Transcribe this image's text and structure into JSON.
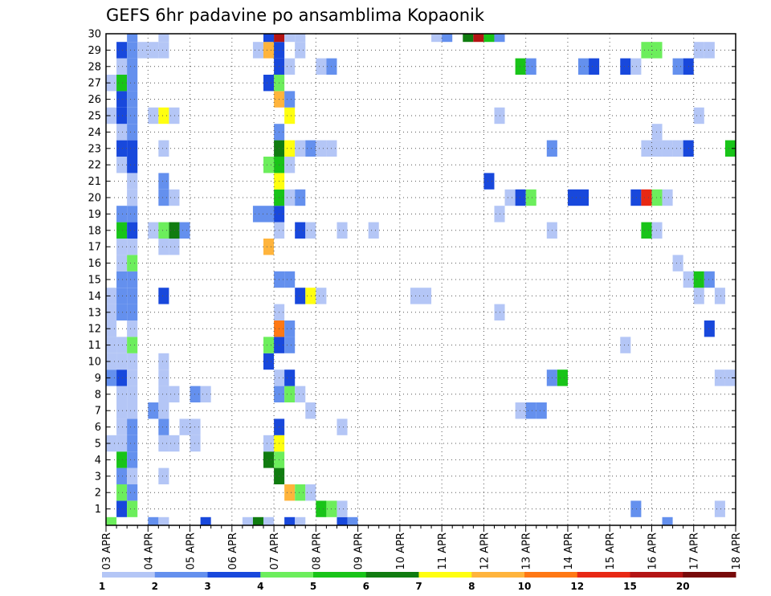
{
  "chart_data": {
    "type": "heatmap",
    "title": "GEFS 6hr padavine po ansamblima Kopaonik",
    "xlabel": "",
    "ylabel": "",
    "x_tick_labels": [
      "03 APR",
      "04 APR",
      "05 APR",
      "06 APR",
      "07 APR",
      "08 APR",
      "09 APR",
      "10 APR",
      "11 APR",
      "12 APR",
      "13 APR",
      "14 APR",
      "15 APR",
      "16 APR",
      "17 APR",
      "18 APR"
    ],
    "y_tick_labels": [
      "1",
      "2",
      "3",
      "4",
      "5",
      "6",
      "7",
      "8",
      "9",
      "10",
      "11",
      "12",
      "13",
      "14",
      "15",
      "16",
      "17",
      "18",
      "19",
      "20",
      "21",
      "22",
      "23",
      "24",
      "25",
      "26",
      "27",
      "28",
      "29",
      "30"
    ],
    "xlim": [
      0,
      60
    ],
    "ylim": [
      0,
      30
    ],
    "grid": true,
    "legend_position": "bottom",
    "legend_labels": [
      "1",
      "2",
      "3",
      "4",
      "5",
      "6",
      "7",
      "8",
      "10",
      "12",
      "15",
      "20"
    ],
    "legend_colors": [
      "#b4c6f6",
      "#6490ee",
      "#1848dc",
      "#6cee5c",
      "#18c418",
      "#107c10",
      "#ffff10",
      "#ffb43c",
      "#ff7814",
      "#e82814",
      "#b41414",
      "#780a0a"
    ],
    "cell_units": "x = 6-hour step from 03 APR 00Z, y = ensemble member, v = colour class 1-12",
    "cells": [
      {
        "x": 0,
        "y": 0,
        "v": 4
      },
      {
        "x": 4,
        "y": 0,
        "v": 2
      },
      {
        "x": 5,
        "y": 0,
        "v": 1
      },
      {
        "x": 9,
        "y": 0,
        "v": 3
      },
      {
        "x": 13,
        "y": 0,
        "v": 1
      },
      {
        "x": 14,
        "y": 0,
        "v": 6
      },
      {
        "x": 15,
        "y": 0,
        "v": 1
      },
      {
        "x": 17,
        "y": 0,
        "v": 3
      },
      {
        "x": 18,
        "y": 0,
        "v": 1
      },
      {
        "x": 22,
        "y": 0,
        "v": 3
      },
      {
        "x": 23,
        "y": 0,
        "v": 2
      },
      {
        "x": 53,
        "y": 0,
        "v": 2
      },
      {
        "x": 1,
        "y": 1,
        "v": 3
      },
      {
        "x": 2,
        "y": 1,
        "v": 4
      },
      {
        "x": 20,
        "y": 1,
        "v": 5
      },
      {
        "x": 21,
        "y": 1,
        "v": 4
      },
      {
        "x": 22,
        "y": 1,
        "v": 1
      },
      {
        "x": 50,
        "y": 1,
        "v": 2
      },
      {
        "x": 58,
        "y": 1,
        "v": 1
      },
      {
        "x": 1,
        "y": 2,
        "v": 4
      },
      {
        "x": 2,
        "y": 2,
        "v": 2
      },
      {
        "x": 17,
        "y": 2,
        "v": 8
      },
      {
        "x": 18,
        "y": 2,
        "v": 4
      },
      {
        "x": 19,
        "y": 2,
        "v": 1
      },
      {
        "x": 1,
        "y": 3,
        "v": 2
      },
      {
        "x": 2,
        "y": 3,
        "v": 1
      },
      {
        "x": 5,
        "y": 3,
        "v": 1
      },
      {
        "x": 16,
        "y": 3,
        "v": 6
      },
      {
        "x": 1,
        "y": 4,
        "v": 5
      },
      {
        "x": 2,
        "y": 4,
        "v": 2
      },
      {
        "x": 15,
        "y": 4,
        "v": 6
      },
      {
        "x": 16,
        "y": 4,
        "v": 4
      },
      {
        "x": 0,
        "y": 5,
        "v": 1
      },
      {
        "x": 1,
        "y": 5,
        "v": 1
      },
      {
        "x": 2,
        "y": 5,
        "v": 2
      },
      {
        "x": 5,
        "y": 5,
        "v": 1
      },
      {
        "x": 6,
        "y": 5,
        "v": 1
      },
      {
        "x": 8,
        "y": 5,
        "v": 1
      },
      {
        "x": 15,
        "y": 5,
        "v": 1
      },
      {
        "x": 16,
        "y": 5,
        "v": 7
      },
      {
        "x": 1,
        "y": 6,
        "v": 1
      },
      {
        "x": 2,
        "y": 6,
        "v": 2
      },
      {
        "x": 5,
        "y": 6,
        "v": 2
      },
      {
        "x": 7,
        "y": 6,
        "v": 1
      },
      {
        "x": 8,
        "y": 6,
        "v": 1
      },
      {
        "x": 16,
        "y": 6,
        "v": 3
      },
      {
        "x": 22,
        "y": 6,
        "v": 1
      },
      {
        "x": 1,
        "y": 7,
        "v": 1
      },
      {
        "x": 2,
        "y": 7,
        "v": 1
      },
      {
        "x": 4,
        "y": 7,
        "v": 2
      },
      {
        "x": 5,
        "y": 7,
        "v": 1
      },
      {
        "x": 19,
        "y": 7,
        "v": 1
      },
      {
        "x": 39,
        "y": 7,
        "v": 1
      },
      {
        "x": 40,
        "y": 7,
        "v": 2
      },
      {
        "x": 41,
        "y": 7,
        "v": 2
      },
      {
        "x": 1,
        "y": 8,
        "v": 1
      },
      {
        "x": 2,
        "y": 8,
        "v": 1
      },
      {
        "x": 5,
        "y": 8,
        "v": 1
      },
      {
        "x": 6,
        "y": 8,
        "v": 1
      },
      {
        "x": 8,
        "y": 8,
        "v": 2
      },
      {
        "x": 9,
        "y": 8,
        "v": 1
      },
      {
        "x": 16,
        "y": 8,
        "v": 2
      },
      {
        "x": 17,
        "y": 8,
        "v": 4
      },
      {
        "x": 18,
        "y": 8,
        "v": 1
      },
      {
        "x": 0,
        "y": 9,
        "v": 2
      },
      {
        "x": 1,
        "y": 9,
        "v": 3
      },
      {
        "x": 2,
        "y": 9,
        "v": 1
      },
      {
        "x": 5,
        "y": 9,
        "v": 1
      },
      {
        "x": 16,
        "y": 9,
        "v": 1
      },
      {
        "x": 17,
        "y": 9,
        "v": 3
      },
      {
        "x": 42,
        "y": 9,
        "v": 2
      },
      {
        "x": 43,
        "y": 9,
        "v": 5
      },
      {
        "x": 58,
        "y": 9,
        "v": 1
      },
      {
        "x": 59,
        "y": 9,
        "v": 1
      },
      {
        "x": 0,
        "y": 10,
        "v": 1
      },
      {
        "x": 1,
        "y": 10,
        "v": 1
      },
      {
        "x": 2,
        "y": 10,
        "v": 1
      },
      {
        "x": 5,
        "y": 10,
        "v": 1
      },
      {
        "x": 15,
        "y": 10,
        "v": 3
      },
      {
        "x": 0,
        "y": 11,
        "v": 1
      },
      {
        "x": 1,
        "y": 11,
        "v": 1
      },
      {
        "x": 2,
        "y": 11,
        "v": 4
      },
      {
        "x": 15,
        "y": 11,
        "v": 4
      },
      {
        "x": 16,
        "y": 11,
        "v": 3
      },
      {
        "x": 17,
        "y": 11,
        "v": 2
      },
      {
        "x": 49,
        "y": 11,
        "v": 1
      },
      {
        "x": 0,
        "y": 12,
        "v": 1
      },
      {
        "x": 2,
        "y": 12,
        "v": 1
      },
      {
        "x": 16,
        "y": 12,
        "v": 9
      },
      {
        "x": 17,
        "y": 12,
        "v": 2
      },
      {
        "x": 57,
        "y": 12,
        "v": 3
      },
      {
        "x": 0,
        "y": 13,
        "v": 1
      },
      {
        "x": 1,
        "y": 13,
        "v": 2
      },
      {
        "x": 2,
        "y": 13,
        "v": 2
      },
      {
        "x": 16,
        "y": 13,
        "v": 1
      },
      {
        "x": 37,
        "y": 13,
        "v": 1
      },
      {
        "x": 0,
        "y": 14,
        "v": 1
      },
      {
        "x": 1,
        "y": 14,
        "v": 2
      },
      {
        "x": 2,
        "y": 14,
        "v": 2
      },
      {
        "x": 5,
        "y": 14,
        "v": 3
      },
      {
        "x": 18,
        "y": 14,
        "v": 3
      },
      {
        "x": 19,
        "y": 14,
        "v": 7
      },
      {
        "x": 20,
        "y": 14,
        "v": 1
      },
      {
        "x": 29,
        "y": 14,
        "v": 1
      },
      {
        "x": 30,
        "y": 14,
        "v": 1
      },
      {
        "x": 56,
        "y": 14,
        "v": 1
      },
      {
        "x": 58,
        "y": 14,
        "v": 1
      },
      {
        "x": 1,
        "y": 15,
        "v": 2
      },
      {
        "x": 2,
        "y": 15,
        "v": 2
      },
      {
        "x": 16,
        "y": 15,
        "v": 2
      },
      {
        "x": 17,
        "y": 15,
        "v": 2
      },
      {
        "x": 55,
        "y": 15,
        "v": 1
      },
      {
        "x": 56,
        "y": 15,
        "v": 5
      },
      {
        "x": 57,
        "y": 15,
        "v": 2
      },
      {
        "x": 1,
        "y": 16,
        "v": 1
      },
      {
        "x": 2,
        "y": 16,
        "v": 4
      },
      {
        "x": 54,
        "y": 16,
        "v": 1
      },
      {
        "x": 1,
        "y": 17,
        "v": 1
      },
      {
        "x": 2,
        "y": 17,
        "v": 1
      },
      {
        "x": 5,
        "y": 17,
        "v": 1
      },
      {
        "x": 6,
        "y": 17,
        "v": 1
      },
      {
        "x": 15,
        "y": 17,
        "v": 8
      },
      {
        "x": 1,
        "y": 18,
        "v": 5
      },
      {
        "x": 2,
        "y": 18,
        "v": 3
      },
      {
        "x": 4,
        "y": 18,
        "v": 1
      },
      {
        "x": 5,
        "y": 18,
        "v": 4
      },
      {
        "x": 6,
        "y": 18,
        "v": 6
      },
      {
        "x": 7,
        "y": 18,
        "v": 2
      },
      {
        "x": 16,
        "y": 18,
        "v": 1
      },
      {
        "x": 18,
        "y": 18,
        "v": 3
      },
      {
        "x": 19,
        "y": 18,
        "v": 1
      },
      {
        "x": 22,
        "y": 18,
        "v": 1
      },
      {
        "x": 25,
        "y": 18,
        "v": 1
      },
      {
        "x": 42,
        "y": 18,
        "v": 1
      },
      {
        "x": 51,
        "y": 18,
        "v": 5
      },
      {
        "x": 52,
        "y": 18,
        "v": 1
      },
      {
        "x": 1,
        "y": 19,
        "v": 2
      },
      {
        "x": 2,
        "y": 19,
        "v": 2
      },
      {
        "x": 14,
        "y": 19,
        "v": 2
      },
      {
        "x": 15,
        "y": 19,
        "v": 2
      },
      {
        "x": 16,
        "y": 19,
        "v": 3
      },
      {
        "x": 37,
        "y": 19,
        "v": 1
      },
      {
        "x": 2,
        "y": 20,
        "v": 1
      },
      {
        "x": 5,
        "y": 20,
        "v": 2
      },
      {
        "x": 6,
        "y": 20,
        "v": 1
      },
      {
        "x": 16,
        "y": 20,
        "v": 5
      },
      {
        "x": 17,
        "y": 20,
        "v": 1
      },
      {
        "x": 18,
        "y": 20,
        "v": 2
      },
      {
        "x": 38,
        "y": 20,
        "v": 1
      },
      {
        "x": 39,
        "y": 20,
        "v": 3
      },
      {
        "x": 40,
        "y": 20,
        "v": 4
      },
      {
        "x": 44,
        "y": 20,
        "v": 3
      },
      {
        "x": 45,
        "y": 20,
        "v": 3
      },
      {
        "x": 50,
        "y": 20,
        "v": 3
      },
      {
        "x": 51,
        "y": 20,
        "v": 10
      },
      {
        "x": 52,
        "y": 20,
        "v": 4
      },
      {
        "x": 53,
        "y": 20,
        "v": 1
      },
      {
        "x": 2,
        "y": 21,
        "v": 1
      },
      {
        "x": 5,
        "y": 21,
        "v": 2
      },
      {
        "x": 16,
        "y": 21,
        "v": 7
      },
      {
        "x": 36,
        "y": 21,
        "v": 3
      },
      {
        "x": 1,
        "y": 22,
        "v": 1
      },
      {
        "x": 2,
        "y": 22,
        "v": 3
      },
      {
        "x": 15,
        "y": 22,
        "v": 4
      },
      {
        "x": 16,
        "y": 22,
        "v": 5
      },
      {
        "x": 17,
        "y": 22,
        "v": 1
      },
      {
        "x": 1,
        "y": 23,
        "v": 3
      },
      {
        "x": 2,
        "y": 23,
        "v": 3
      },
      {
        "x": 5,
        "y": 23,
        "v": 1
      },
      {
        "x": 16,
        "y": 23,
        "v": 6
      },
      {
        "x": 17,
        "y": 23,
        "v": 7
      },
      {
        "x": 18,
        "y": 23,
        "v": 1
      },
      {
        "x": 19,
        "y": 23,
        "v": 2
      },
      {
        "x": 20,
        "y": 23,
        "v": 1
      },
      {
        "x": 21,
        "y": 23,
        "v": 1
      },
      {
        "x": 42,
        "y": 23,
        "v": 2
      },
      {
        "x": 51,
        "y": 23,
        "v": 1
      },
      {
        "x": 52,
        "y": 23,
        "v": 1
      },
      {
        "x": 53,
        "y": 23,
        "v": 1
      },
      {
        "x": 54,
        "y": 23,
        "v": 1
      },
      {
        "x": 55,
        "y": 23,
        "v": 3
      },
      {
        "x": 59,
        "y": 23,
        "v": 5
      },
      {
        "x": 1,
        "y": 24,
        "v": 1
      },
      {
        "x": 2,
        "y": 24,
        "v": 2
      },
      {
        "x": 16,
        "y": 24,
        "v": 2
      },
      {
        "x": 52,
        "y": 24,
        "v": 1
      },
      {
        "x": 0,
        "y": 25,
        "v": 1
      },
      {
        "x": 1,
        "y": 25,
        "v": 3
      },
      {
        "x": 2,
        "y": 25,
        "v": 2
      },
      {
        "x": 4,
        "y": 25,
        "v": 1
      },
      {
        "x": 5,
        "y": 25,
        "v": 7
      },
      {
        "x": 6,
        "y": 25,
        "v": 1
      },
      {
        "x": 17,
        "y": 25,
        "v": 7
      },
      {
        "x": 37,
        "y": 25,
        "v": 1
      },
      {
        "x": 56,
        "y": 25,
        "v": 1
      },
      {
        "x": 1,
        "y": 26,
        "v": 3
      },
      {
        "x": 2,
        "y": 26,
        "v": 2
      },
      {
        "x": 16,
        "y": 26,
        "v": 8
      },
      {
        "x": 17,
        "y": 26,
        "v": 2
      },
      {
        "x": 0,
        "y": 27,
        "v": 1
      },
      {
        "x": 1,
        "y": 27,
        "v": 5
      },
      {
        "x": 2,
        "y": 27,
        "v": 2
      },
      {
        "x": 15,
        "y": 27,
        "v": 3
      },
      {
        "x": 16,
        "y": 27,
        "v": 4
      },
      {
        "x": 1,
        "y": 28,
        "v": 1
      },
      {
        "x": 2,
        "y": 28,
        "v": 2
      },
      {
        "x": 16,
        "y": 28,
        "v": 3
      },
      {
        "x": 17,
        "y": 28,
        "v": 1
      },
      {
        "x": 20,
        "y": 28,
        "v": 1
      },
      {
        "x": 21,
        "y": 28,
        "v": 2
      },
      {
        "x": 39,
        "y": 28,
        "v": 5
      },
      {
        "x": 40,
        "y": 28,
        "v": 2
      },
      {
        "x": 45,
        "y": 28,
        "v": 2
      },
      {
        "x": 46,
        "y": 28,
        "v": 3
      },
      {
        "x": 49,
        "y": 28,
        "v": 3
      },
      {
        "x": 50,
        "y": 28,
        "v": 1
      },
      {
        "x": 54,
        "y": 28,
        "v": 2
      },
      {
        "x": 55,
        "y": 28,
        "v": 3
      },
      {
        "x": 1,
        "y": 29,
        "v": 3
      },
      {
        "x": 2,
        "y": 29,
        "v": 2
      },
      {
        "x": 3,
        "y": 29,
        "v": 1
      },
      {
        "x": 4,
        "y": 29,
        "v": 1
      },
      {
        "x": 5,
        "y": 29,
        "v": 1
      },
      {
        "x": 14,
        "y": 29,
        "v": 1
      },
      {
        "x": 15,
        "y": 29,
        "v": 8
      },
      {
        "x": 16,
        "y": 29,
        "v": 3
      },
      {
        "x": 18,
        "y": 29,
        "v": 1
      },
      {
        "x": 51,
        "y": 29,
        "v": 4
      },
      {
        "x": 52,
        "y": 29,
        "v": 4
      },
      {
        "x": 56,
        "y": 29,
        "v": 1
      },
      {
        "x": 57,
        "y": 29,
        "v": 1
      },
      {
        "x": 2,
        "y": 30,
        "v": 2
      },
      {
        "x": 5,
        "y": 30,
        "v": 1
      },
      {
        "x": 15,
        "y": 30,
        "v": 3
      },
      {
        "x": 16,
        "y": 30,
        "v": 11
      },
      {
        "x": 17,
        "y": 30,
        "v": 1
      },
      {
        "x": 18,
        "y": 30,
        "v": 1
      },
      {
        "x": 31,
        "y": 30,
        "v": 1
      },
      {
        "x": 32,
        "y": 30,
        "v": 2
      },
      {
        "x": 34,
        "y": 30,
        "v": 6
      },
      {
        "x": 35,
        "y": 30,
        "v": 11
      },
      {
        "x": 36,
        "y": 30,
        "v": 5
      },
      {
        "x": 37,
        "y": 30,
        "v": 2
      }
    ]
  }
}
